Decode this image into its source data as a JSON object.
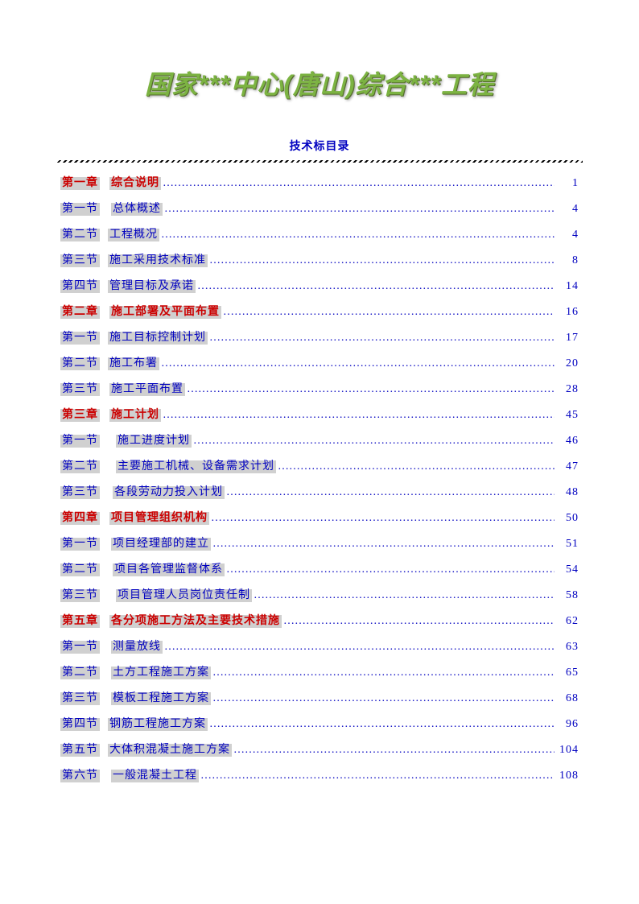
{
  "main_title": "国家***中心(唐山)综合***工程",
  "subtitle": "技术标目录",
  "colors": {
    "title_fill": "#7cb342",
    "title_shadow": "#556b2f",
    "chapter_color": "#cc0000",
    "section_color": "#0000c0",
    "highlight_bg": "#d0d0d0",
    "page_bg": "#ffffff"
  },
  "fonts": {
    "title_size": 32,
    "subtitle_size": 14,
    "toc_size": 14
  },
  "toc": [
    {
      "type": "chapter",
      "label": "第一章",
      "title": "综合说明",
      "page": "1",
      "gap": 12
    },
    {
      "type": "section",
      "label": "第一节",
      "title": "总体概述",
      "page": "4",
      "gap": 14
    },
    {
      "type": "section",
      "label": "第二节",
      "title": "工程概况",
      "page": "4",
      "gap": 10
    },
    {
      "type": "section",
      "label": "第三节",
      "title": "施工采用技术标准",
      "page": "8",
      "gap": 10
    },
    {
      "type": "section",
      "label": "第四节",
      "title": "管理目标及承诺",
      "page": "14",
      "gap": 10
    },
    {
      "type": "chapter",
      "label": "第二章",
      "title": "施工部署及平面布置",
      "page": "16",
      "gap": 12
    },
    {
      "type": "section",
      "label": "第一节",
      "title": "施工目标控制计划",
      "page": "17",
      "gap": 10
    },
    {
      "type": "section",
      "label": "第二节",
      "title": "施工布署",
      "page": "20",
      "gap": 10
    },
    {
      "type": "section",
      "label": "第三节",
      "title": "施工平面布置",
      "page": "28",
      "gap": 12
    },
    {
      "type": "chapter",
      "label": "第三章",
      "title": "施工计划",
      "page": "45",
      "gap": 12
    },
    {
      "type": "section",
      "label": "第一节",
      "title": "施工进度计划",
      "page": "46",
      "gap": 20
    },
    {
      "type": "section",
      "label": "第二节",
      "title": "主要施工机械、设备需求计划",
      "page": "47",
      "gap": 20
    },
    {
      "type": "section",
      "label": "第三节",
      "title": "各段劳动力投入计划",
      "page": "48",
      "gap": 16
    },
    {
      "type": "chapter",
      "label": "第四章",
      "title": "项目管理组织机构",
      "page": "50",
      "gap": 12
    },
    {
      "type": "section",
      "label": "第一节",
      "title": "项目经理部的建立",
      "page": "51",
      "gap": 14
    },
    {
      "type": "section",
      "label": "第二节",
      "title": "项目各管理监督体系",
      "page": "54",
      "gap": 16
    },
    {
      "type": "section",
      "label": "第三节",
      "title": "项目管理人员岗位责任制",
      "page": "58",
      "gap": 20
    },
    {
      "type": "chapter",
      "label": "第五章",
      "title": "各分项施工方法及主要技术措施",
      "page": "62",
      "gap": 12
    },
    {
      "type": "section",
      "label": "第一节",
      "title": "测量放线",
      "page": "63",
      "gap": 14
    },
    {
      "type": "section",
      "label": "第二节",
      "title": "土方工程施工方案",
      "page": "65",
      "gap": 14
    },
    {
      "type": "section",
      "label": "第三节",
      "title": "模板工程施工方案",
      "page": "68",
      "gap": 14
    },
    {
      "type": "section",
      "label": "第四节",
      "title": "钢筋工程施工方案",
      "page": "96",
      "gap": 10
    },
    {
      "type": "section",
      "label": "第五节",
      "title": "大体积混凝土施工方案",
      "page": "104",
      "gap": 10
    },
    {
      "type": "section",
      "label": "第六节",
      "title": "一般混凝土工程",
      "page": "108",
      "gap": 14
    }
  ]
}
